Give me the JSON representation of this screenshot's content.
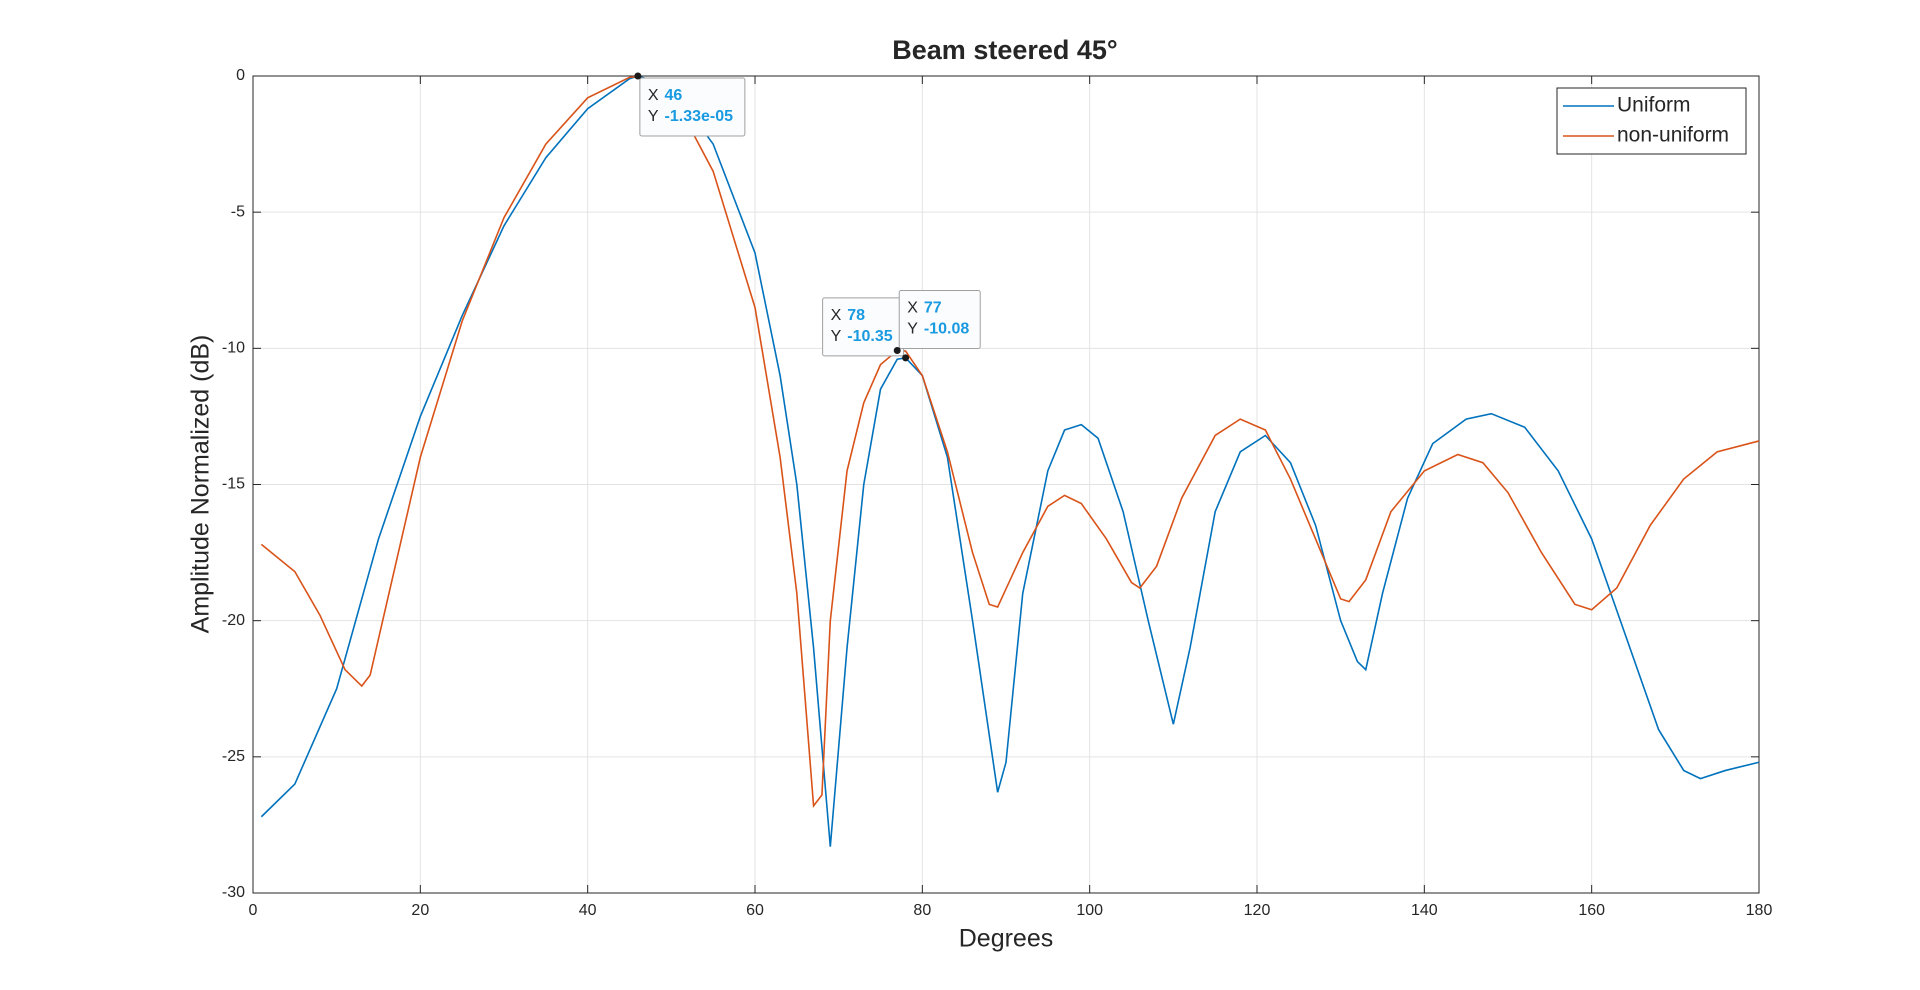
{
  "chart_data": {
    "type": "line",
    "title": "Beam steered 45°",
    "xlabel": "Degrees",
    "ylabel": "Amplitude Normalized (dB)",
    "xlim": [
      0,
      180
    ],
    "ylim": [
      -30,
      0
    ],
    "xticks": [
      0,
      20,
      40,
      60,
      80,
      100,
      120,
      140,
      160,
      180
    ],
    "yticks": [
      -30,
      -25,
      -20,
      -15,
      -10,
      -5,
      0
    ],
    "grid": true,
    "legend": "top-right",
    "series": [
      {
        "name": "Uniform",
        "color": "#0072bd",
        "x": [
          1,
          5,
          10,
          15,
          20,
          25,
          30,
          35,
          40,
          45,
          46,
          50,
          55,
          60,
          63,
          65,
          67,
          69,
          71,
          73,
          75,
          77,
          78,
          80,
          83,
          86,
          89,
          90,
          92,
          95,
          97,
          99,
          101,
          104,
          107,
          110,
          112,
          115,
          118,
          121,
          124,
          127,
          130,
          132,
          133,
          135,
          138,
          141,
          145,
          148,
          152,
          156,
          160,
          164,
          168,
          171,
          173,
          176,
          180
        ],
        "values": [
          -27.2,
          -26,
          -22.5,
          -17,
          -12.5,
          -8.8,
          -5.5,
          -3,
          -1.2,
          -0.1,
          0,
          -0.4,
          -2.5,
          -6.5,
          -11,
          -15,
          -21,
          -28.3,
          -21,
          -15,
          -11.5,
          -10.4,
          -10.35,
          -11,
          -14,
          -20,
          -26.3,
          -25.2,
          -19,
          -14.5,
          -13,
          -12.8,
          -13.3,
          -16,
          -20,
          -23.8,
          -21,
          -16,
          -13.8,
          -13.2,
          -14.2,
          -16.5,
          -20,
          -21.5,
          -21.8,
          -19,
          -15.5,
          -13.5,
          -12.6,
          -12.4,
          -12.9,
          -14.5,
          -17,
          -20.5,
          -24,
          -25.5,
          -25.8,
          -25.5,
          -25.2
        ]
      },
      {
        "name": "non-uniform",
        "color": "#d95319",
        "x": [
          1,
          5,
          8,
          11,
          13,
          14,
          17,
          20,
          25,
          30,
          35,
          40,
          45,
          46,
          50,
          55,
          60,
          63,
          65,
          67,
          68,
          69,
          71,
          73,
          75,
          77,
          78,
          80,
          83,
          86,
          88,
          89,
          92,
          95,
          97,
          99,
          102,
          105,
          106,
          108,
          111,
          115,
          118,
          121,
          124,
          127,
          130,
          131,
          133,
          136,
          140,
          144,
          147,
          150,
          154,
          158,
          160,
          163,
          167,
          171,
          175,
          180
        ],
        "values": [
          -17.2,
          -18.2,
          -19.8,
          -21.8,
          -22.4,
          -22,
          -18,
          -14,
          -9,
          -5.2,
          -2.5,
          -0.8,
          -0.05,
          -0.02,
          -0.6,
          -3.5,
          -8.5,
          -14,
          -19,
          -26.8,
          -26.4,
          -20,
          -14.5,
          -12,
          -10.6,
          -10.08,
          -10.1,
          -11,
          -13.8,
          -17.5,
          -19.4,
          -19.5,
          -17.5,
          -15.8,
          -15.4,
          -15.7,
          -17,
          -18.6,
          -18.8,
          -18,
          -15.5,
          -13.2,
          -12.6,
          -13,
          -14.8,
          -17,
          -19.2,
          -19.3,
          -18.5,
          -16,
          -14.5,
          -13.9,
          -14.2,
          -15.3,
          -17.5,
          -19.4,
          -19.6,
          -18.8,
          -16.5,
          -14.8,
          -13.8,
          -13.4
        ]
      }
    ],
    "datatip_keys": [
      "X",
      "Y"
    ],
    "datatips": [
      {
        "x": 46,
        "y": -1.33e-05,
        "y_label": "-1.33e-05"
      },
      {
        "x": 78,
        "y": -10.35
      },
      {
        "x": 77,
        "y": -10.08
      }
    ]
  }
}
